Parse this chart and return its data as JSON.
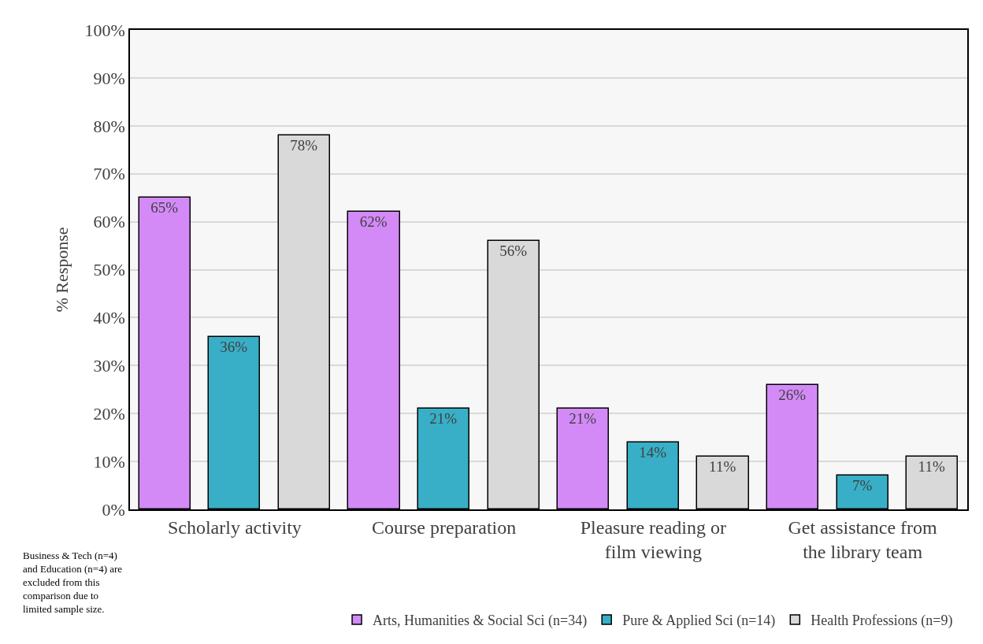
{
  "chart_data": {
    "type": "bar",
    "ylabel": "% Response",
    "categories": [
      "Scholarly activity",
      "Course preparation",
      "Pleasure reading or film viewing",
      "Get assistance from the library team"
    ],
    "series": [
      {
        "name": "Arts, Humanities & Social Sci (n=34)",
        "color": "#d38af7",
        "values": [
          65,
          62,
          21,
          26
        ]
      },
      {
        "name": "Pure & Applied Sci (n=14)",
        "color": "#38afc6",
        "values": [
          36,
          21,
          14,
          7
        ]
      },
      {
        "name": "Health Professions (n=9)",
        "color": "#d9d9d9",
        "values": [
          78,
          56,
          11,
          11
        ]
      }
    ],
    "ylim": [
      0,
      100
    ],
    "yticks": [
      {
        "value": 0,
        "label": "0%"
      },
      {
        "value": 10,
        "label": "10%"
      },
      {
        "value": 20,
        "label": "20%"
      },
      {
        "value": 30,
        "label": "30%"
      },
      {
        "value": 40,
        "label": "40%"
      },
      {
        "value": 50,
        "label": "50%"
      },
      {
        "value": 60,
        "label": "60%"
      },
      {
        "value": 70,
        "label": "70%"
      },
      {
        "value": 80,
        "label": "80%"
      },
      {
        "value": 90,
        "label": "90%"
      },
      {
        "value": 100,
        "label": "100%"
      }
    ],
    "grid": "y",
    "legend": "bottom",
    "value_labels": [
      [
        "65%",
        "62%",
        "21%",
        "26%"
      ],
      [
        "36%",
        "21%",
        "14%",
        "7%"
      ],
      [
        "78%",
        "56%",
        "11%",
        "11%"
      ]
    ],
    "annotations": [
      "Business & Tech (n=4) and Education (n=4) are excluded from this comparison due to limited sample size."
    ]
  }
}
